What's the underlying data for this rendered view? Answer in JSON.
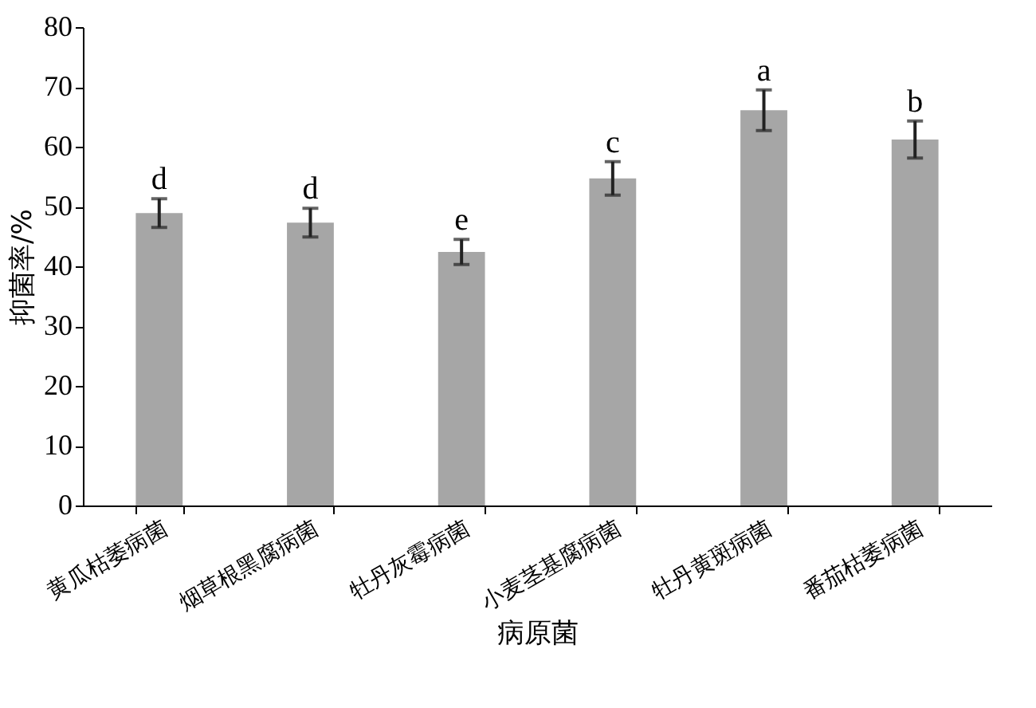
{
  "chart_data": {
    "type": "bar",
    "xlabel": "病原菌",
    "ylabel": "抑菌率/%",
    "categories": [
      "黄瓜枯萎病菌",
      "烟草根黑腐病菌",
      "牡丹灰霉病菌",
      "小麦茎基腐病菌",
      "牡丹黄斑病菌",
      "番茄枯萎病菌"
    ],
    "values": [
      48.9,
      47.3,
      42.4,
      54.7,
      66.1,
      61.2
    ],
    "errors": [
      2.4,
      2.4,
      2.1,
      2.8,
      3.4,
      3.1
    ],
    "color": "#a6a6a6",
    "ylim": [
      0,
      80
    ],
    "yticks": [
      0,
      10,
      20,
      30,
      40,
      50,
      60,
      70,
      80
    ],
    "grid": false,
    "annotations": [
      "d",
      "d",
      "e",
      "c",
      "a",
      "b"
    ]
  }
}
